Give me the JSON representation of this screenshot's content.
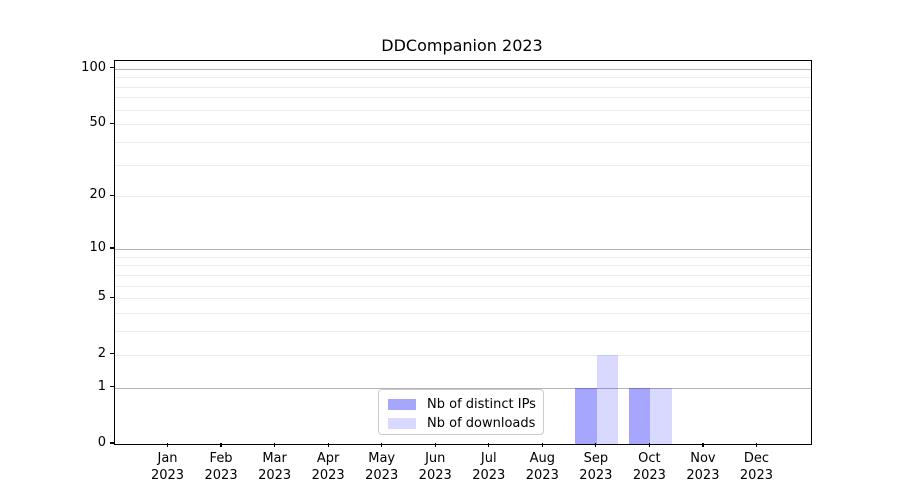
{
  "chart_data": {
    "type": "bar",
    "title": "DDCompanion 2023",
    "x_months": [
      "Jan",
      "Feb",
      "Mar",
      "Apr",
      "May",
      "Jun",
      "Jul",
      "Aug",
      "Sep",
      "Oct",
      "Nov",
      "Dec"
    ],
    "x_year": "2023",
    "series": [
      {
        "name": "Nb of distinct IPs",
        "color": "rgba(0,0,255,0.35)",
        "values": [
          0,
          0,
          0,
          0,
          0,
          0,
          0,
          0,
          1,
          1,
          0,
          0
        ]
      },
      {
        "name": "Nb of downloads",
        "color": "rgba(0,0,255,0.15)",
        "values": [
          0,
          0,
          0,
          0,
          0,
          0,
          0,
          0,
          2,
          1,
          0,
          0
        ]
      }
    ],
    "yscale": "log1p",
    "ylim": [
      0,
      110
    ],
    "ytick_labels": [
      0,
      1,
      2,
      5,
      10,
      20,
      50,
      100
    ],
    "grid_major": [
      1,
      10,
      100
    ],
    "grid_minor": [
      2,
      3,
      4,
      5,
      6,
      7,
      8,
      9,
      20,
      30,
      40,
      50,
      60,
      70,
      80,
      90
    ],
    "bar_width_fraction": 0.4,
    "legend_position": "lower-center-inside",
    "grid": "on",
    "colors": {
      "grid_major": "#b4b4b4",
      "grid_minor": "#ebebeb",
      "spine": "#000000",
      "background": "#ffffff",
      "legend_border": "#cccccc",
      "text": "#000000"
    }
  }
}
